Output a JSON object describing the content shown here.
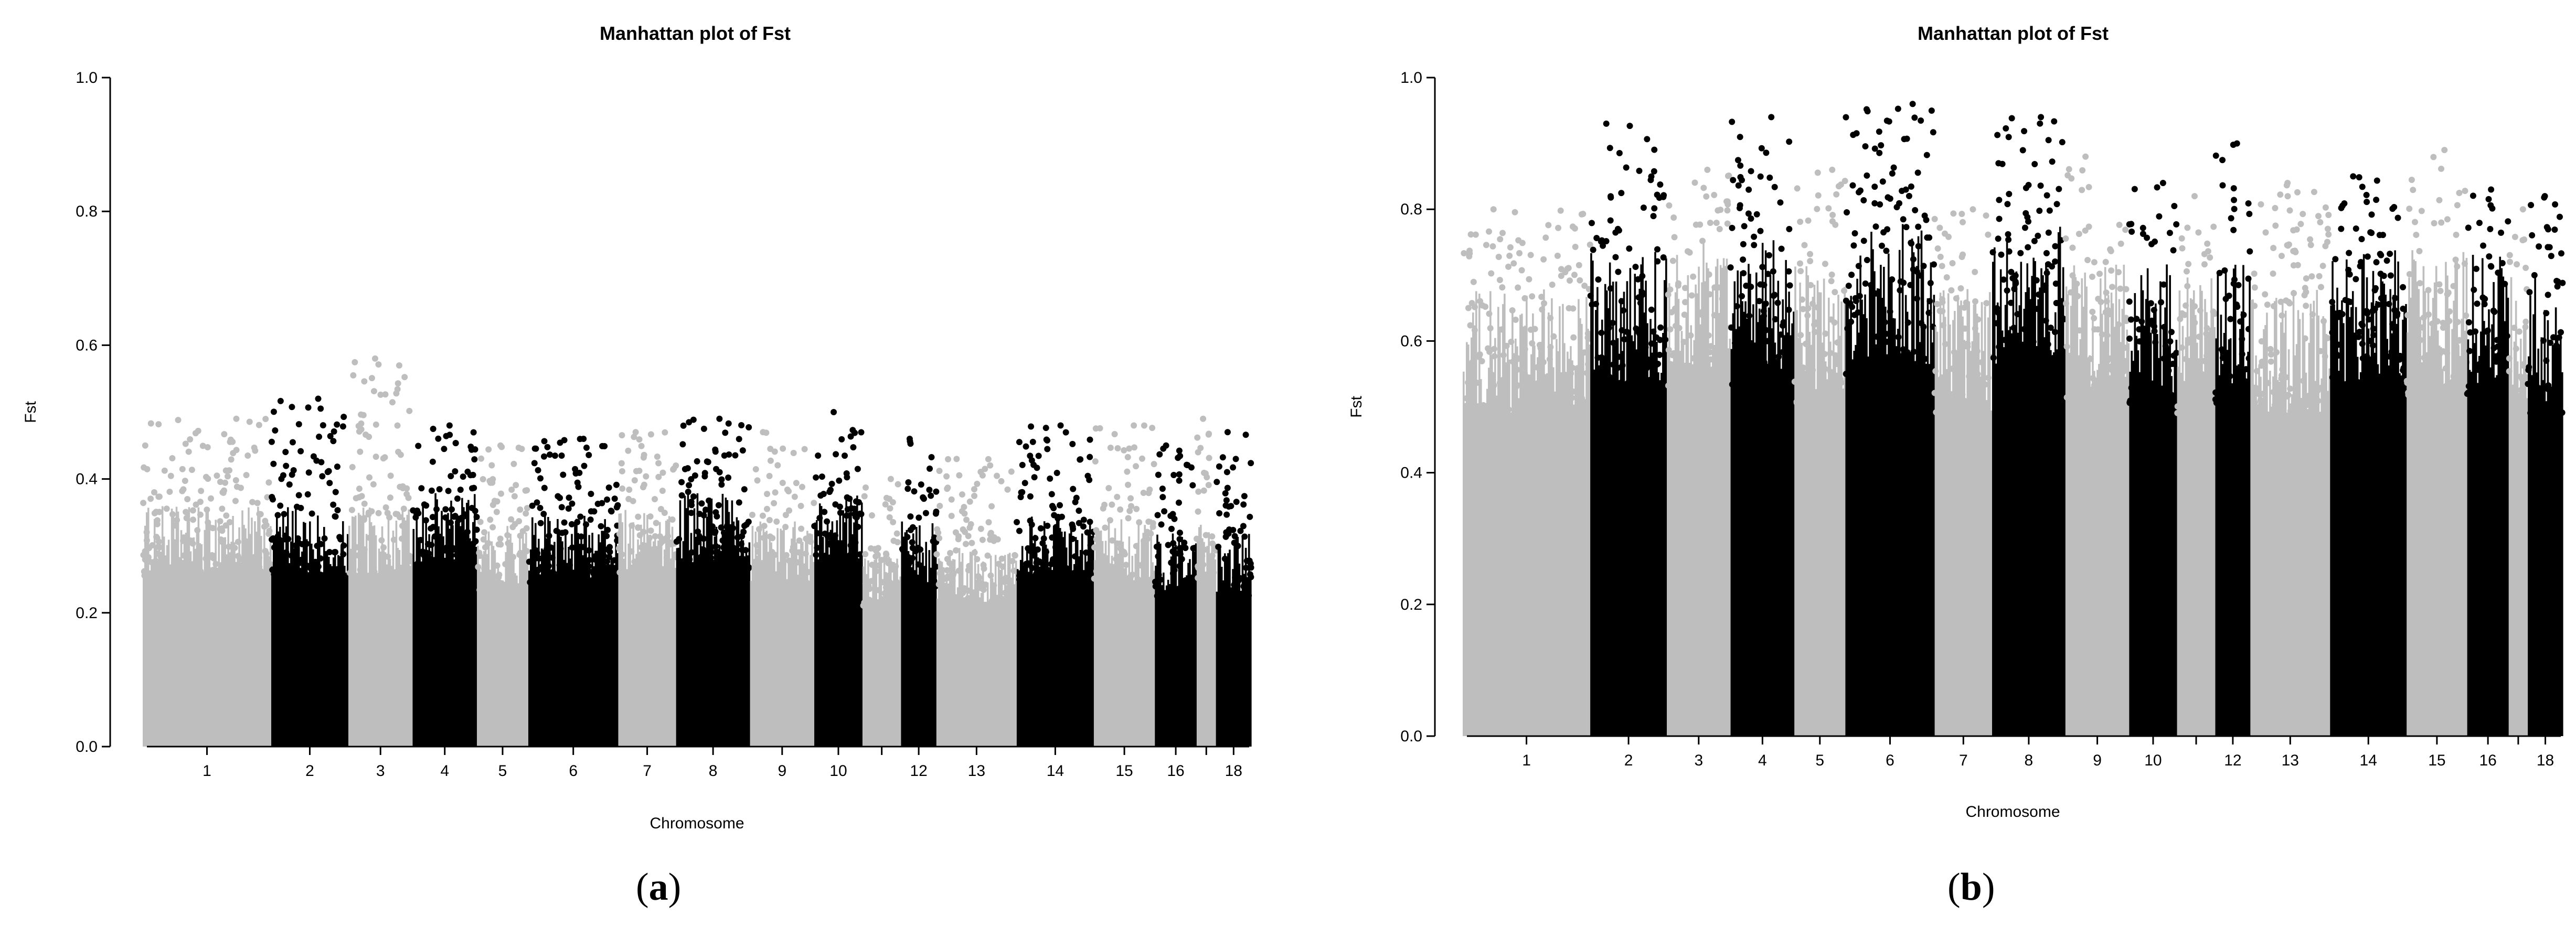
{
  "chart_data": [
    {
      "type": "scatter",
      "title": "Manhattan plot of Fst",
      "xlabel": "Chromosome",
      "ylabel": "Fst",
      "ylim": [
        0.0,
        1.0
      ],
      "yticks": [
        "0.0",
        "0.2",
        "0.4",
        "0.6",
        "0.8",
        "1.0"
      ],
      "grid": false,
      "colors": [
        "#bebebe",
        "#000000"
      ],
      "x_tick_labels": [
        "1",
        "2",
        "3",
        "4",
        "5",
        "6",
        "7",
        "8",
        "9",
        "10",
        "12",
        "13",
        "14",
        "15",
        "16",
        "18"
      ],
      "chromosomes": [
        {
          "chr": "1",
          "rel_width": 2.0,
          "max_fst": 0.49,
          "typical_top": 0.36
        },
        {
          "chr": "2",
          "rel_width": 1.2,
          "max_fst": 0.52,
          "typical_top": 0.36
        },
        {
          "chr": "3",
          "rel_width": 1.0,
          "max_fst": 0.58,
          "typical_top": 0.36
        },
        {
          "chr": "4",
          "rel_width": 1.0,
          "max_fst": 0.48,
          "typical_top": 0.38
        },
        {
          "chr": "5",
          "rel_width": 0.8,
          "max_fst": 0.45,
          "typical_top": 0.33
        },
        {
          "chr": "6",
          "rel_width": 1.4,
          "max_fst": 0.46,
          "typical_top": 0.35
        },
        {
          "chr": "7",
          "rel_width": 0.9,
          "max_fst": 0.47,
          "typical_top": 0.36
        },
        {
          "chr": "8",
          "rel_width": 1.15,
          "max_fst": 0.49,
          "typical_top": 0.38
        },
        {
          "chr": "9",
          "rel_width": 1.0,
          "max_fst": 0.47,
          "typical_top": 0.34
        },
        {
          "chr": "10",
          "rel_width": 0.75,
          "max_fst": 0.5,
          "typical_top": 0.38
        },
        {
          "chr": "11",
          "rel_width": 0.6,
          "max_fst": 0.4,
          "typical_top": 0.3
        },
        {
          "chr": "12",
          "rel_width": 0.55,
          "max_fst": 0.46,
          "typical_top": 0.34
        },
        {
          "chr": "13",
          "rel_width": 1.25,
          "max_fst": 0.43,
          "typical_top": 0.3
        },
        {
          "chr": "14",
          "rel_width": 1.2,
          "max_fst": 0.48,
          "typical_top": 0.35
        },
        {
          "chr": "15",
          "rel_width": 0.95,
          "max_fst": 0.48,
          "typical_top": 0.34
        },
        {
          "chr": "16",
          "rel_width": 0.65,
          "max_fst": 0.45,
          "typical_top": 0.32
        },
        {
          "chr": "17",
          "rel_width": 0.3,
          "max_fst": 0.49,
          "typical_top": 0.36
        },
        {
          "chr": "18",
          "rel_width": 0.55,
          "max_fst": 0.47,
          "typical_top": 0.32
        }
      ]
    },
    {
      "type": "scatter",
      "title": "Manhattan plot of Fst",
      "xlabel": "Chromosome",
      "ylabel": "Fst",
      "ylim": [
        0.0,
        1.0
      ],
      "yticks": [
        "0.0",
        "0.2",
        "0.4",
        "0.6",
        "0.8",
        "1.0"
      ],
      "grid": false,
      "colors": [
        "#bebebe",
        "#000000"
      ],
      "x_tick_labels": [
        "1",
        "2",
        "3",
        "4",
        "5",
        "6",
        "7",
        "8",
        "9",
        "10",
        "12",
        "13",
        "14",
        "15",
        "16",
        "18"
      ],
      "chromosomes": [
        {
          "chr": "1",
          "rel_width": 2.0,
          "max_fst": 0.8,
          "typical_top": 0.68
        },
        {
          "chr": "2",
          "rel_width": 1.2,
          "max_fst": 0.93,
          "typical_top": 0.74
        },
        {
          "chr": "3",
          "rel_width": 1.0,
          "max_fst": 0.86,
          "typical_top": 0.76
        },
        {
          "chr": "4",
          "rel_width": 1.0,
          "max_fst": 0.94,
          "typical_top": 0.76
        },
        {
          "chr": "5",
          "rel_width": 0.8,
          "max_fst": 0.86,
          "typical_top": 0.72
        },
        {
          "chr": "6",
          "rel_width": 1.4,
          "max_fst": 0.96,
          "typical_top": 0.78
        },
        {
          "chr": "7",
          "rel_width": 0.9,
          "max_fst": 0.8,
          "typical_top": 0.68
        },
        {
          "chr": "8",
          "rel_width": 1.15,
          "max_fst": 0.94,
          "typical_top": 0.78
        },
        {
          "chr": "9",
          "rel_width": 1.0,
          "max_fst": 0.88,
          "typical_top": 0.72
        },
        {
          "chr": "10",
          "rel_width": 0.75,
          "max_fst": 0.84,
          "typical_top": 0.72
        },
        {
          "chr": "11",
          "rel_width": 0.6,
          "max_fst": 0.82,
          "typical_top": 0.7
        },
        {
          "chr": "12",
          "rel_width": 0.55,
          "max_fst": 0.9,
          "typical_top": 0.72
        },
        {
          "chr": "13",
          "rel_width": 1.25,
          "max_fst": 0.84,
          "typical_top": 0.68
        },
        {
          "chr": "14",
          "rel_width": 1.2,
          "max_fst": 0.85,
          "typical_top": 0.74
        },
        {
          "chr": "15",
          "rel_width": 0.95,
          "max_fst": 0.89,
          "typical_top": 0.74
        },
        {
          "chr": "16",
          "rel_width": 0.65,
          "max_fst": 0.83,
          "typical_top": 0.74
        },
        {
          "chr": "17",
          "rel_width": 0.3,
          "max_fst": 0.8,
          "typical_top": 0.7
        },
        {
          "chr": "18",
          "rel_width": 0.55,
          "max_fst": 0.82,
          "typical_top": 0.7
        }
      ]
    }
  ],
  "figure": {
    "sublabels": [
      {
        "open": "(",
        "letter": "a",
        "close": ")"
      },
      {
        "open": "(",
        "letter": "b",
        "close": ")"
      }
    ]
  }
}
